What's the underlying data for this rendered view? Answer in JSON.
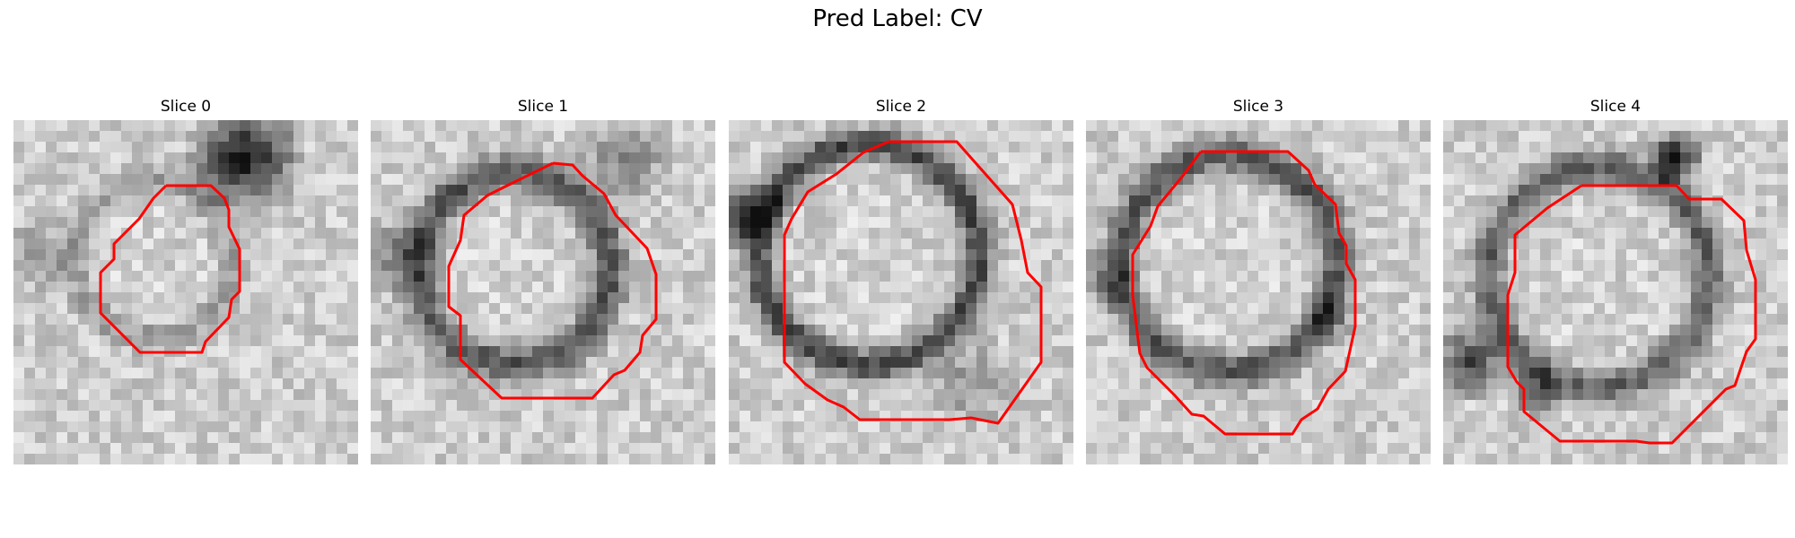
{
  "title": "Pred Label: CV",
  "contour_color": "#ff0000",
  "panels": [
    {
      "label": "Slice 0",
      "contour_icon": "red-contour-outline",
      "image": "grayscale-em-slice"
    },
    {
      "label": "Slice 1",
      "contour_icon": "red-contour-outline",
      "image": "grayscale-em-slice"
    },
    {
      "label": "Slice 2",
      "contour_icon": "red-contour-outline",
      "image": "grayscale-em-slice"
    },
    {
      "label": "Slice 3",
      "contour_icon": "red-contour-outline",
      "image": "grayscale-em-slice"
    },
    {
      "label": "Slice 4",
      "contour_icon": "red-contour-outline",
      "image": "grayscale-em-slice"
    }
  ]
}
